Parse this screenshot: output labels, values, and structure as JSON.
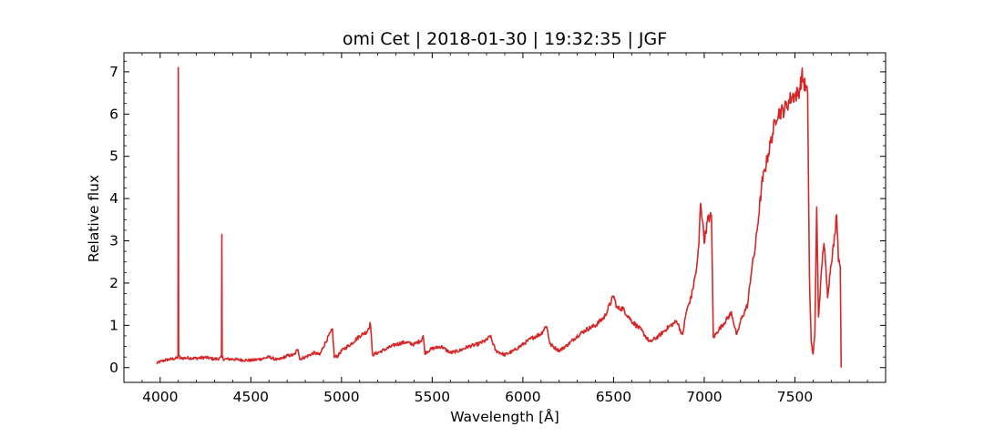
{
  "chart_data": {
    "type": "line",
    "title": "omi Cet | 2018-01-30 | 19:32:35 | JGF",
    "xlabel": "Wavelength [Å]",
    "ylabel": "Relative flux",
    "xlim": [
      3800,
      8000
    ],
    "ylim": [
      -0.35,
      7.45
    ],
    "x_ticks": [
      "4000",
      "4500",
      "5000",
      "5500",
      "6000",
      "6500",
      "7000",
      "7500"
    ],
    "y_ticks": [
      "0",
      "1",
      "2",
      "3",
      "4",
      "5",
      "6",
      "7"
    ],
    "grid": false,
    "series": [
      {
        "color": "#d62728",
        "points": [
          [
            3980,
            0.1
          ],
          [
            4000,
            0.14
          ],
          [
            4030,
            0.18
          ],
          [
            4060,
            0.2
          ],
          [
            4090,
            0.22
          ],
          [
            4098,
            0.25
          ],
          [
            4100,
            7.1
          ],
          [
            4102,
            0.3
          ],
          [
            4110,
            0.22
          ],
          [
            4150,
            0.23
          ],
          [
            4200,
            0.22
          ],
          [
            4250,
            0.24
          ],
          [
            4300,
            0.2
          ],
          [
            4330,
            0.22
          ],
          [
            4338,
            0.25
          ],
          [
            4340,
            3.15
          ],
          [
            4342,
            0.25
          ],
          [
            4350,
            0.2
          ],
          [
            4400,
            0.2
          ],
          [
            4450,
            0.18
          ],
          [
            4500,
            0.17
          ],
          [
            4550,
            0.2
          ],
          [
            4600,
            0.25
          ],
          [
            4650,
            0.18
          ],
          [
            4700,
            0.28
          ],
          [
            4740,
            0.3
          ],
          [
            4760,
            0.45
          ],
          [
            4770,
            0.2
          ],
          [
            4800,
            0.25
          ],
          [
            4850,
            0.35
          ],
          [
            4880,
            0.3
          ],
          [
            4900,
            0.5
          ],
          [
            4930,
            0.75
          ],
          [
            4950,
            0.9
          ],
          [
            4960,
            0.25
          ],
          [
            4980,
            0.28
          ],
          [
            5000,
            0.4
          ],
          [
            5050,
            0.55
          ],
          [
            5100,
            0.75
          ],
          [
            5140,
            0.85
          ],
          [
            5160,
            1.05
          ],
          [
            5170,
            0.3
          ],
          [
            5200,
            0.35
          ],
          [
            5250,
            0.45
          ],
          [
            5300,
            0.55
          ],
          [
            5350,
            0.6
          ],
          [
            5400,
            0.55
          ],
          [
            5440,
            0.65
          ],
          [
            5450,
            0.75
          ],
          [
            5460,
            0.35
          ],
          [
            5500,
            0.45
          ],
          [
            5550,
            0.5
          ],
          [
            5600,
            0.35
          ],
          [
            5650,
            0.4
          ],
          [
            5700,
            0.5
          ],
          [
            5750,
            0.55
          ],
          [
            5800,
            0.65
          ],
          [
            5820,
            0.75
          ],
          [
            5850,
            0.4
          ],
          [
            5900,
            0.3
          ],
          [
            5950,
            0.4
          ],
          [
            6000,
            0.55
          ],
          [
            6050,
            0.7
          ],
          [
            6100,
            0.8
          ],
          [
            6130,
            1.0
          ],
          [
            6150,
            0.55
          ],
          [
            6200,
            0.4
          ],
          [
            6250,
            0.55
          ],
          [
            6300,
            0.75
          ],
          [
            6350,
            0.9
          ],
          [
            6400,
            1.0
          ],
          [
            6450,
            1.2
          ],
          [
            6480,
            1.5
          ],
          [
            6500,
            1.7
          ],
          [
            6520,
            1.4
          ],
          [
            6550,
            1.4
          ],
          [
            6600,
            1.1
          ],
          [
            6650,
            0.9
          ],
          [
            6700,
            0.6
          ],
          [
            6750,
            0.75
          ],
          [
            6800,
            0.95
          ],
          [
            6850,
            1.1
          ],
          [
            6880,
            0.75
          ],
          [
            6900,
            1.3
          ],
          [
            6930,
            1.7
          ],
          [
            6960,
            2.4
          ],
          [
            6970,
            2.9
          ],
          [
            6980,
            3.95
          ],
          [
            6990,
            3.5
          ],
          [
            7000,
            3.0
          ],
          [
            7020,
            3.5
          ],
          [
            7040,
            3.6
          ],
          [
            7050,
            0.7
          ],
          [
            7080,
            0.9
          ],
          [
            7100,
            1.0
          ],
          [
            7150,
            1.3
          ],
          [
            7180,
            0.75
          ],
          [
            7200,
            1.1
          ],
          [
            7240,
            1.5
          ],
          [
            7260,
            2.3
          ],
          [
            7280,
            2.8
          ],
          [
            7300,
            3.6
          ],
          [
            7320,
            4.4
          ],
          [
            7350,
            5.0
          ],
          [
            7380,
            5.6
          ],
          [
            7400,
            6.0
          ],
          [
            7440,
            6.1
          ],
          [
            7480,
            6.4
          ],
          [
            7520,
            6.5
          ],
          [
            7540,
            6.9
          ],
          [
            7560,
            6.6
          ],
          [
            7570,
            6.5
          ],
          [
            7580,
            2.1
          ],
          [
            7590,
            0.6
          ],
          [
            7600,
            0.3
          ],
          [
            7610,
            0.8
          ],
          [
            7620,
            3.8
          ],
          [
            7630,
            1.2
          ],
          [
            7650,
            2.5
          ],
          [
            7660,
            3.0
          ],
          [
            7680,
            1.7
          ],
          [
            7700,
            2.5
          ],
          [
            7720,
            3.1
          ],
          [
            7730,
            3.7
          ],
          [
            7740,
            2.6
          ],
          [
            7750,
            2.4
          ],
          [
            7755,
            0.0
          ]
        ]
      }
    ]
  }
}
